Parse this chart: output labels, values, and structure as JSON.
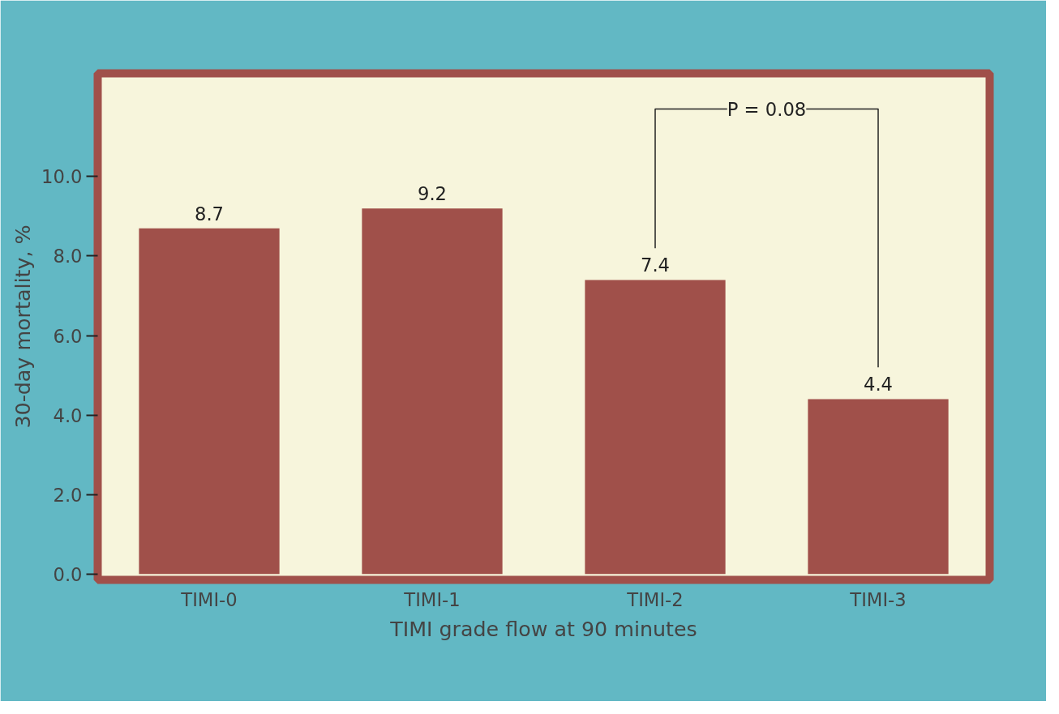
{
  "chart_data": {
    "type": "bar",
    "xlabel": "TIMI grade flow at 90 minutes",
    "ylabel": "30-day mortality, %",
    "categories": [
      "TIMI-0",
      "TIMI-1",
      "TIMI-2",
      "TIMI-3"
    ],
    "values": [
      8.7,
      9.2,
      7.4,
      4.4
    ],
    "color": "#a0504a",
    "data_labels": true,
    "ylim": [
      -0.15,
      12.6
    ],
    "yticks": [
      {
        "value": 0,
        "label": "0.0"
      },
      {
        "value": 2,
        "label": "2.0"
      },
      {
        "value": 4,
        "label": "4.0"
      },
      {
        "value": 6,
        "label": "6.0"
      },
      {
        "value": 8,
        "label": "8.0"
      },
      {
        "value": 10,
        "label": "10.0"
      }
    ],
    "annotations": [
      "P = 0.08"
    ],
    "grid": false
  }
}
